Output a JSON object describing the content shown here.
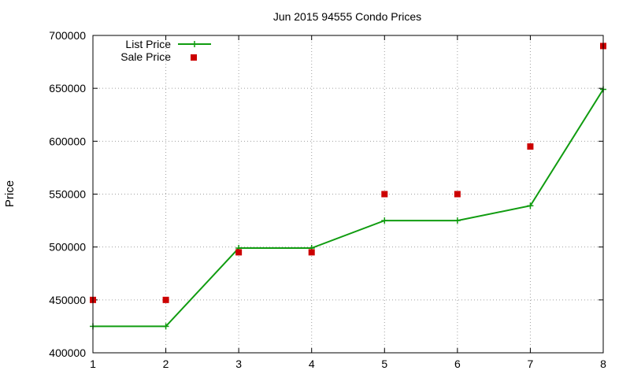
{
  "chart_data": {
    "type": "line",
    "title": "Jun 2015 94555 Condo Prices",
    "xlabel": "",
    "ylabel": "Price",
    "x": [
      1,
      2,
      3,
      4,
      5,
      6,
      7,
      8
    ],
    "xlim": [
      1,
      8
    ],
    "ylim": [
      400000,
      700000
    ],
    "xticks": [
      "1",
      "2",
      "3",
      "4",
      "5",
      "6",
      "7",
      "8"
    ],
    "yticks": [
      "400000",
      "450000",
      "500000",
      "550000",
      "600000",
      "650000",
      "700000"
    ],
    "grid": true,
    "legend_position": "top-left",
    "series": [
      {
        "name": "List Price",
        "style": "line-plus",
        "color": "#109c10",
        "values": [
          425000,
          425000,
          499000,
          499000,
          525000,
          525000,
          539000,
          649000
        ]
      },
      {
        "name": "Sale Price",
        "style": "square-points",
        "color": "#cc0000",
        "values": [
          450000,
          450000,
          495000,
          495000,
          550000,
          550000,
          595000,
          690000
        ]
      }
    ]
  }
}
